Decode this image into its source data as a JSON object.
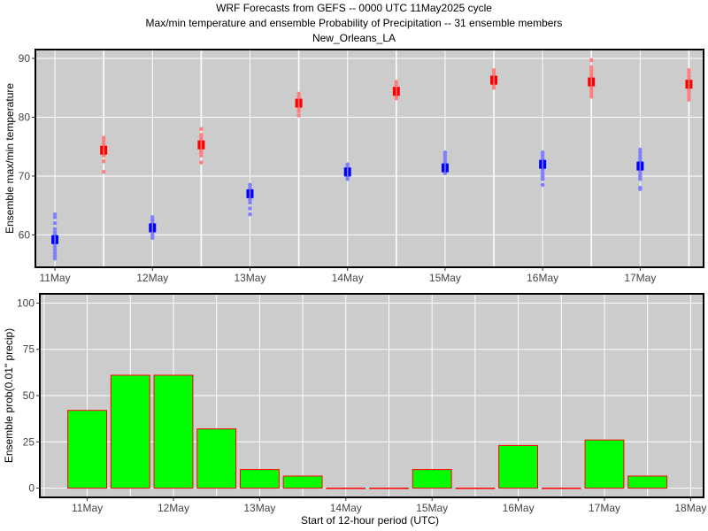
{
  "title": {
    "line1": "WRF Forecasts from GEFS --  0000 UTC 11May2025  cycle",
    "line2": "Max/min temperature and ensemble Probability of Precipitation --  31 ensemble members",
    "line3": "New_Orleans_LA"
  },
  "chart_data": [
    {
      "type": "scatter",
      "name": "temperature",
      "ylabel": "Ensemble max/min temperature",
      "xlabel": "",
      "ylim": [
        54.5,
        91.5
      ],
      "yticks": [
        60,
        70,
        80,
        90
      ],
      "x_tick_positions": [
        0,
        1,
        2,
        3,
        4,
        5,
        6
      ],
      "x_tick_labels": [
        "11May",
        "12May",
        "13May",
        "14May",
        "15May",
        "16May",
        "17May"
      ],
      "xlim": [
        -0.2,
        6.65
      ],
      "grid": true,
      "colors": {
        "min_points": "#8080ff",
        "max_points": "#ff8080",
        "min_mean": "#0000ff",
        "max_mean": "#ff0000",
        "panel": "#cccccc"
      },
      "series": [
        {
          "kind": "min",
          "x": [
            0,
            1,
            2,
            3,
            4,
            5,
            6
          ],
          "mean": [
            59.2,
            61.2,
            67.0,
            70.7,
            71.4,
            72.0,
            71.7
          ],
          "members": [
            [
              56.0,
              56.5,
              57.0,
              57.5,
              58.0,
              58.5,
              59.0,
              59.5,
              60.0,
              60.5,
              61.0,
              62.0,
              63.0,
              63.5
            ],
            [
              59.5,
              60.0,
              60.5,
              61.0,
              61.5,
              62.0,
              62.5,
              63.0
            ],
            [
              63.5,
              64.5,
              65.5,
              66.0,
              66.5,
              67.0,
              67.5,
              68.0,
              68.5
            ],
            [
              69.5,
              70.0,
              70.5,
              71.0,
              71.5,
              72.0
            ],
            [
              70.5,
              71.0,
              71.5,
              72.0,
              72.5,
              73.0,
              73.5,
              74.0
            ],
            [
              68.5,
              69.5,
              70.0,
              70.5,
              71.0,
              71.5,
              72.0,
              72.5,
              73.0,
              73.5,
              74.0
            ],
            [
              67.8,
              68.0,
              69.5,
              70.0,
              70.5,
              71.0,
              71.5,
              72.0,
              72.5,
              73.0,
              73.5,
              74.0,
              74.5
            ]
          ]
        },
        {
          "kind": "max",
          "x": [
            0.5,
            1.5,
            2.5,
            3.5,
            4.5,
            5.5,
            6.5
          ],
          "mean": [
            74.4,
            75.3,
            82.4,
            84.4,
            86.3,
            86.0,
            85.6
          ],
          "members": [
            [
              70.7,
              72.5,
              73.5,
              74.0,
              74.5,
              75.0,
              75.5,
              76.0,
              76.5
            ],
            [
              72.3,
              73.5,
              74.0,
              74.5,
              75.0,
              75.5,
              76.0,
              76.5,
              77.0,
              78.0
            ],
            [
              80.3,
              81.0,
              81.5,
              82.0,
              82.5,
              83.0,
              83.5,
              84.0
            ],
            [
              83.2,
              83.7,
              84.0,
              84.5,
              85.0,
              85.5,
              86.0
            ],
            [
              85.0,
              85.5,
              86.0,
              86.5,
              87.0,
              87.5,
              88.0
            ],
            [
              83.5,
              84.0,
              84.5,
              85.0,
              85.5,
              86.0,
              86.5,
              87.0,
              87.5,
              88.0,
              88.5,
              89.7
            ],
            [
              83.0,
              83.5,
              84.0,
              84.5,
              85.0,
              85.5,
              86.0,
              86.5,
              87.0,
              87.5,
              88.0
            ]
          ]
        }
      ]
    },
    {
      "type": "bar",
      "name": "precipitation",
      "ylabel": "Ensemble prob(0.01\" precip)",
      "xlabel": "Start of 12-hour period (UTC)",
      "ylim": [
        -5,
        105
      ],
      "yticks": [
        0,
        25,
        50,
        75,
        100
      ],
      "x_tick_positions": [
        0,
        1,
        2,
        3,
        4,
        5,
        6,
        7
      ],
      "x_tick_labels": [
        "11May",
        "12May",
        "13May",
        "14May",
        "15May",
        "16May",
        "17May",
        "18May"
      ],
      "xlim": [
        -0.55,
        7.15
      ],
      "grid": true,
      "colors": {
        "bar_fill": "#00ff00",
        "bar_edge": "#ff0000",
        "panel": "#cccccc"
      },
      "x": [
        0,
        0.5,
        1,
        1.5,
        2,
        2.5,
        3,
        3.5,
        4,
        4.5,
        5,
        5.5,
        6,
        6.5
      ],
      "values": [
        42,
        61,
        61,
        32,
        10,
        6.5,
        0,
        0,
        10,
        0,
        23,
        0,
        26,
        6.5
      ]
    }
  ]
}
